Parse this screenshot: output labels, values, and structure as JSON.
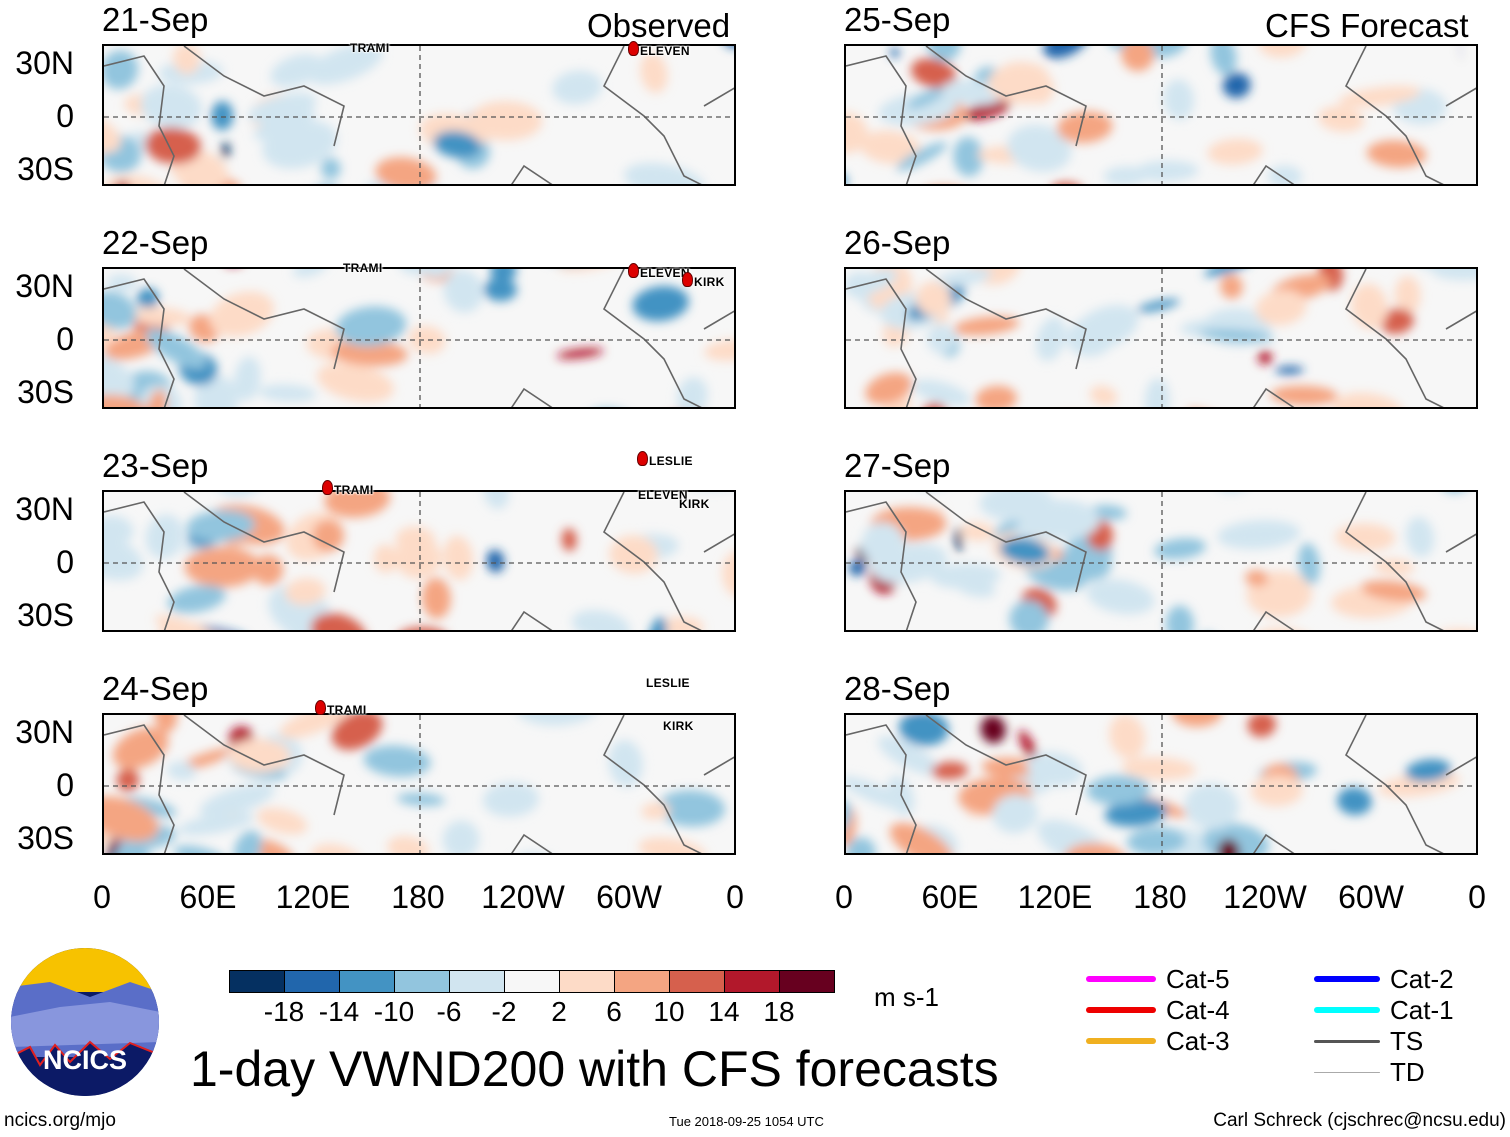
{
  "title": "1-day VWND200 with CFS forecasts",
  "observed_label": "Observed",
  "forecast_label": "CFS Forecast",
  "lat_labels": [
    "30N",
    "0",
    "30S"
  ],
  "lon_labels": [
    "0",
    "60E",
    "120E",
    "180",
    "120W",
    "60W",
    "0"
  ],
  "observed_panels": [
    {
      "date": "21-Sep",
      "storms": [
        {
          "name": "TRAMI",
          "cat": "TD"
        },
        {
          "name": "ELEVEN",
          "cat": "Cat-4"
        }
      ]
    },
    {
      "date": "22-Sep",
      "storms": [
        {
          "name": "TRAMI",
          "cat": "Cat-1"
        },
        {
          "name": "ELEVEN",
          "cat": "Cat-4"
        },
        {
          "name": "KIRK",
          "cat": "Cat-4"
        }
      ]
    },
    {
      "date": "23-Sep",
      "storms": [
        {
          "name": "TRAMI",
          "cat": "Cat-4"
        },
        {
          "name": "LESLIE",
          "cat": "Cat-4"
        },
        {
          "name": "ELEVEN",
          "cat": "TD"
        },
        {
          "name": "KIRK",
          "cat": "TD"
        }
      ]
    },
    {
      "date": "24-Sep",
      "storms": [
        {
          "name": "TRAMI",
          "cat": "Cat-4"
        },
        {
          "name": "LESLIE",
          "cat": "Cat-1"
        },
        {
          "name": "KIRK",
          "cat": "TD"
        }
      ]
    }
  ],
  "forecast_panels": [
    {
      "date": "25-Sep"
    },
    {
      "date": "26-Sep"
    },
    {
      "date": "27-Sep"
    },
    {
      "date": "28-Sep"
    }
  ],
  "colorbar": {
    "unit": "m s-1",
    "labels": [
      "-18",
      "-14",
      "-10",
      "-6",
      "-2",
      "2",
      "6",
      "10",
      "14",
      "18"
    ],
    "colors": [
      "#053061",
      "#2166ac",
      "#4393c3",
      "#92c5de",
      "#d1e5f0",
      "#f7f7f7",
      "#fddbc7",
      "#f4a582",
      "#d6604d",
      "#b2182b",
      "#67001f"
    ]
  },
  "legend": [
    {
      "label": "Cat-5",
      "color": "#ff00ff"
    },
    {
      "label": "Cat-4",
      "color": "#ee0000"
    },
    {
      "label": "Cat-3",
      "color": "#f0b020"
    },
    {
      "label": "Cat-2",
      "color": "#0000ff"
    },
    {
      "label": "Cat-1",
      "color": "#00ffff"
    },
    {
      "label": "TS",
      "color": "#555555"
    },
    {
      "label": "TD",
      "color": "#aaaaaa"
    }
  ],
  "logo_text": "NCICS",
  "footer": {
    "left": "ncics.org/mjo",
    "center": "Tue 2018-09-25 1054 UTC",
    "right": "Carl Schreck (cjschrec@ncsu.edu)"
  }
}
